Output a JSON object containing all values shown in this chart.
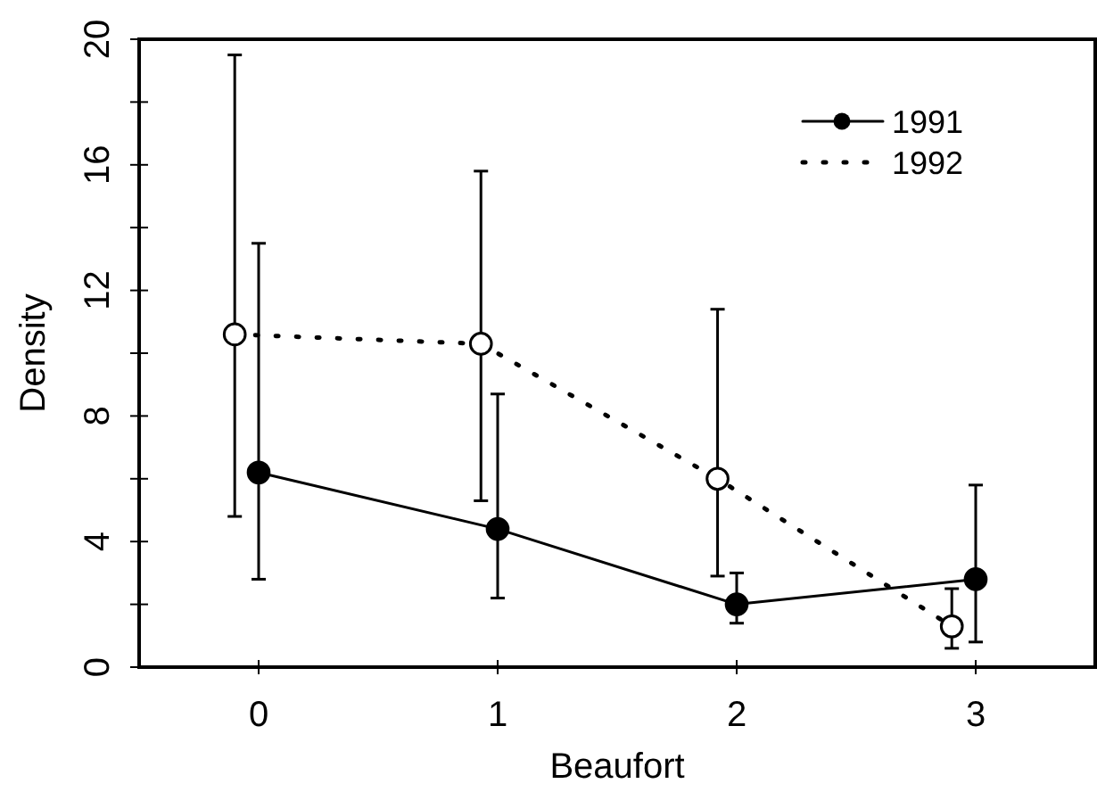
{
  "chart_data": {
    "type": "line",
    "xlabel": "Beaufort",
    "ylabel": "Density",
    "xlim": [
      -0.5,
      3.5
    ],
    "xticks": [
      0,
      1,
      2,
      3
    ],
    "ylim": [
      0,
      20
    ],
    "yticks": [
      0,
      {
        "value": 2,
        "label": null
      },
      4,
      {
        "value": 6,
        "label": null
      },
      8,
      {
        "value": 10,
        "label": null
      },
      12,
      {
        "value": 14,
        "label": null
      },
      16,
      {
        "value": 18,
        "label": null
      },
      20
    ],
    "legend": "top right",
    "marker": "circle",
    "series": [
      {
        "name": "1991",
        "color": "#000000",
        "line_style": "solid",
        "x": [
          0,
          1,
          2,
          3
        ],
        "values": [
          6.2,
          4.4,
          2.0,
          2.8
        ],
        "errors": [
          [
            2.8,
            13.5
          ],
          [
            2.2,
            8.7
          ],
          [
            1.4,
            3.0
          ],
          [
            0.8,
            5.8
          ]
        ]
      },
      {
        "name": "1992",
        "color": "#000000",
        "line_style": "dotted",
        "x": [
          -0.1,
          0.93,
          1.92,
          2.9
        ],
        "values": [
          10.6,
          10.3,
          6.0,
          1.3
        ],
        "errors": [
          [
            4.8,
            19.5
          ],
          [
            5.3,
            15.8
          ],
          [
            2.9,
            11.4
          ],
          [
            0.6,
            2.5
          ]
        ]
      }
    ]
  }
}
